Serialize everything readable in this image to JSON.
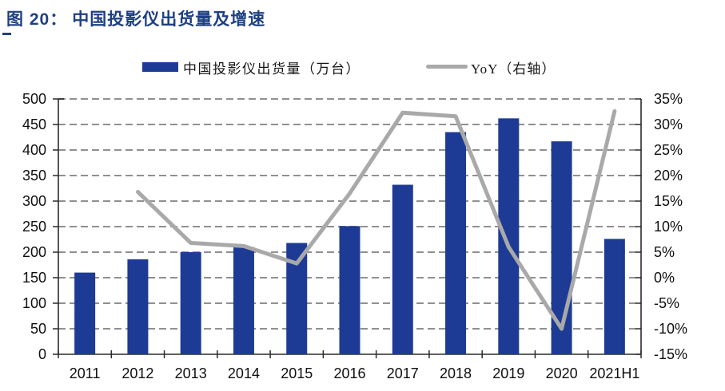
{
  "title": {
    "prefix": "图 20：",
    "text": "中国投影仪出货量及增速"
  },
  "legend": {
    "bar": {
      "label": "中国投影仪出货量（万台）"
    },
    "line": {
      "label": "YoY（右轴）"
    }
  },
  "colors": {
    "bar": "#1d3b95",
    "line": "#a9a9a9",
    "title": "#1e4083",
    "grid": "#909090",
    "axis": "#2b2b2b",
    "text": "#0f0f0f"
  },
  "chart_data": {
    "type": "bar",
    "title": "中国投影仪出货量及增速",
    "categories": [
      "2011",
      "2012",
      "2013",
      "2014",
      "2015",
      "2016",
      "2017",
      "2018",
      "2019",
      "2020",
      "2021H1"
    ],
    "series": [
      {
        "name": "中国投影仪出货量（万台）",
        "type": "bar",
        "axis": "left",
        "values": [
          160,
          186,
          200,
          210,
          218,
          251,
          332,
          435,
          462,
          417,
          226
        ]
      },
      {
        "name": "YoY（右轴）",
        "type": "line",
        "axis": "right",
        "values": [
          null,
          16.8,
          6.8,
          6.2,
          2.8,
          16.5,
          32.3,
          31.6,
          6.0,
          -10.0,
          32.6
        ]
      }
    ],
    "left_axis": {
      "min": 0,
      "max": 500,
      "step": 50,
      "ticks": [
        "500",
        "450",
        "400",
        "350",
        "300",
        "250",
        "200",
        "150",
        "100",
        "50",
        "0"
      ]
    },
    "right_axis": {
      "min": -15,
      "max": 35,
      "step": 5,
      "ticks": [
        "35%",
        "30%",
        "25%",
        "20%",
        "15%",
        "10%",
        "5%",
        "0%",
        "-5%",
        "-10%",
        "-15%"
      ]
    },
    "grid": true,
    "legend_position": "top"
  }
}
